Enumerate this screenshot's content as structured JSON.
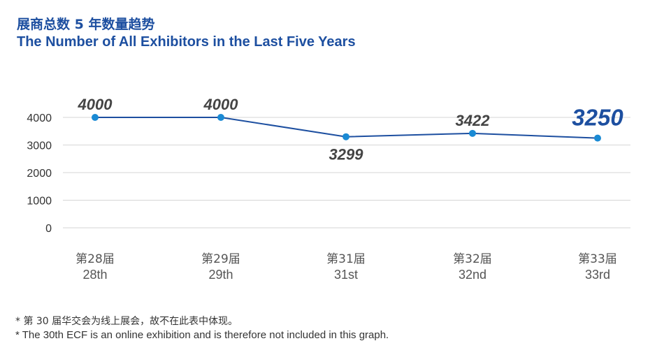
{
  "title_cn": "展商总数 5 年数量趋势",
  "title_en": "The Number of All Exhibitors in the Last Five Years",
  "colors": {
    "title": "#1d4fa0",
    "line": "#1d4fa0",
    "marker": "#1a8ad4",
    "label": "#444444",
    "highlight": "#1d4fa0",
    "grid": "#d6d6d6"
  },
  "chart_data": {
    "type": "line",
    "categories": [
      {
        "cn": "第28届",
        "en": "28th"
      },
      {
        "cn": "第29届",
        "en": "29th"
      },
      {
        "cn": "第31届",
        "en": "31st"
      },
      {
        "cn": "第32届",
        "en": "32nd"
      },
      {
        "cn": "第33届",
        "en": "33rd"
      }
    ],
    "values": [
      4000,
      4000,
      3299,
      3422,
      3250
    ],
    "data_labels": [
      "4000",
      "4000",
      "3299",
      "3422",
      "3250"
    ],
    "label_position": [
      "above",
      "above",
      "below",
      "above",
      "above"
    ],
    "highlight_index": 4,
    "yticks": [
      "0",
      "1000",
      "2000",
      "3000",
      "4000"
    ],
    "ylim": [
      0,
      4000
    ],
    "grid": true
  },
  "notes": [
    "* 第 30 届华交会为线上展会，故不在此表中体现。",
    "* The 30th ECF is an online exhibition and is therefore not included in this graph."
  ]
}
